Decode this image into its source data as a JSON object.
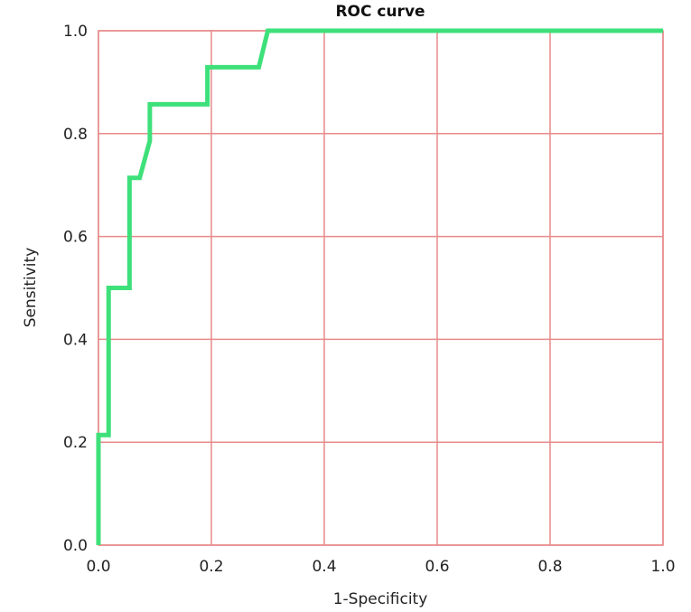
{
  "chart_data": {
    "type": "line",
    "title": "ROC curve",
    "xlabel": "1-Specificity",
    "ylabel": "Sensitivity",
    "xlim": [
      0,
      1
    ],
    "ylim": [
      0,
      1
    ],
    "grid": true,
    "xticks": [
      "0.0",
      "0.2",
      "0.4",
      "0.6",
      "0.8",
      "1.0"
    ],
    "yticks": [
      "0.0",
      "0.2",
      "0.4",
      "0.6",
      "0.8",
      "1.0"
    ],
    "series": [
      {
        "color": "#3ee07a",
        "points": [
          [
            0.0,
            0.0
          ],
          [
            0.0,
            0.214
          ],
          [
            0.018,
            0.214
          ],
          [
            0.018,
            0.5
          ],
          [
            0.055,
            0.5
          ],
          [
            0.055,
            0.714
          ],
          [
            0.073,
            0.714
          ],
          [
            0.091,
            0.786
          ],
          [
            0.091,
            0.857
          ],
          [
            0.193,
            0.857
          ],
          [
            0.193,
            0.929
          ],
          [
            0.284,
            0.929
          ],
          [
            0.3,
            1.0
          ],
          [
            1.0,
            1.0
          ]
        ]
      }
    ]
  },
  "colors": {
    "grid": "#e88a8a",
    "curve": "#3ee07a"
  }
}
